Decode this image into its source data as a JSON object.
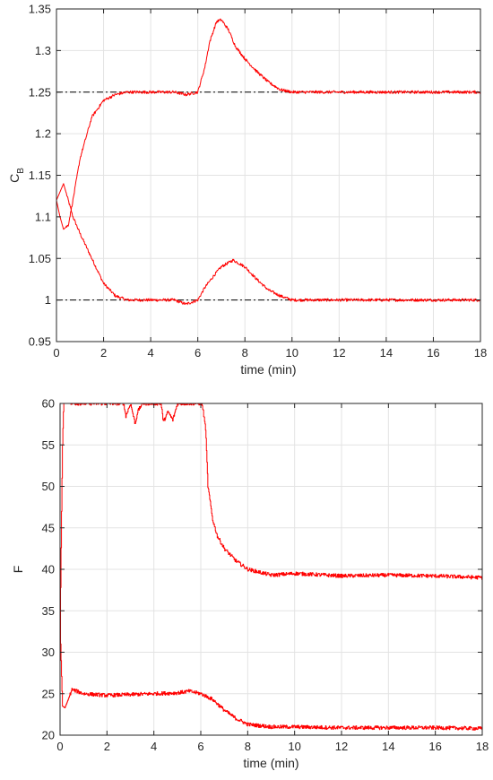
{
  "chart_data": [
    {
      "type": "line",
      "xlabel": "time (min)",
      "ylabel_main": "C",
      "ylabel_sub": "B",
      "xlim": [
        0,
        18
      ],
      "ylim": [
        0.95,
        1.35
      ],
      "xticks": [
        0,
        2,
        4,
        6,
        8,
        10,
        12,
        14,
        16,
        18
      ],
      "yticks": [
        0.95,
        1,
        1.05,
        1.1,
        1.15,
        1.2,
        1.25,
        1.3,
        1.35
      ],
      "ytick_labels": [
        "0.95",
        "1",
        "1.05",
        "1.1",
        "1.15",
        "1.2",
        "1.25",
        "1.3",
        "1.35"
      ],
      "grid": true,
      "setpoints": [
        1.0,
        1.25
      ],
      "series": [
        {
          "points": [
            [
              0,
              1.12
            ],
            [
              0.15,
              1.13
            ],
            [
              0.3,
              1.14
            ],
            [
              0.5,
              1.12
            ],
            [
              0.7,
              1.1
            ],
            [
              1.0,
              1.08
            ],
            [
              1.5,
              1.05
            ],
            [
              2.0,
              1.02
            ],
            [
              2.5,
              1.005
            ],
            [
              3.0,
              1.0
            ],
            [
              4.0,
              1.0
            ],
            [
              5.0,
              1.0
            ],
            [
              5.5,
              0.995
            ],
            [
              6.0,
              1.0
            ],
            [
              6.3,
              1.015
            ],
            [
              6.7,
              1.03
            ],
            [
              7.0,
              1.04
            ],
            [
              7.5,
              1.048
            ],
            [
              8.0,
              1.04
            ],
            [
              8.5,
              1.025
            ],
            [
              9.0,
              1.012
            ],
            [
              9.5,
              1.005
            ],
            [
              10.0,
              1.0
            ],
            [
              18.0,
              1.0
            ]
          ]
        },
        {
          "points": [
            [
              0,
              1.12
            ],
            [
              0.15,
              1.1
            ],
            [
              0.3,
              1.085
            ],
            [
              0.5,
              1.09
            ],
            [
              0.7,
              1.12
            ],
            [
              1.0,
              1.17
            ],
            [
              1.5,
              1.22
            ],
            [
              2.0,
              1.24
            ],
            [
              2.5,
              1.247
            ],
            [
              3.0,
              1.25
            ],
            [
              4.0,
              1.25
            ],
            [
              5.0,
              1.25
            ],
            [
              5.5,
              1.247
            ],
            [
              6.0,
              1.25
            ],
            [
              6.3,
              1.28
            ],
            [
              6.5,
              1.31
            ],
            [
              6.8,
              1.335
            ],
            [
              7.0,
              1.337
            ],
            [
              7.3,
              1.325
            ],
            [
              7.6,
              1.305
            ],
            [
              8.0,
              1.29
            ],
            [
              8.5,
              1.275
            ],
            [
              9.0,
              1.262
            ],
            [
              9.5,
              1.253
            ],
            [
              10.0,
              1.25
            ],
            [
              18.0,
              1.25
            ]
          ]
        }
      ]
    },
    {
      "type": "line",
      "xlabel": "time (min)",
      "ylabel_main": "F",
      "xlim": [
        0,
        18
      ],
      "ylim": [
        20,
        60
      ],
      "xticks": [
        0,
        2,
        4,
        6,
        8,
        10,
        12,
        14,
        16,
        18
      ],
      "yticks": [
        20,
        25,
        30,
        35,
        40,
        45,
        50,
        55,
        60
      ],
      "ytick_labels": [
        "20",
        "25",
        "30",
        "35",
        "40",
        "45",
        "50",
        "55",
        "60"
      ],
      "grid": true,
      "series": [
        {
          "points": [
            [
              0,
              33
            ],
            [
              0.05,
              45
            ],
            [
              0.1,
              55
            ],
            [
              0.15,
              60
            ],
            [
              2.7,
              60
            ],
            [
              2.8,
              58.5
            ],
            [
              3.0,
              60
            ],
            [
              3.2,
              57.5
            ],
            [
              3.3,
              59
            ],
            [
              3.5,
              60
            ],
            [
              4.3,
              60
            ],
            [
              4.4,
              57.8
            ],
            [
              4.6,
              59
            ],
            [
              4.8,
              58
            ],
            [
              5.0,
              60
            ],
            [
              6.05,
              60
            ],
            [
              6.2,
              57
            ],
            [
              6.3,
              50
            ],
            [
              6.5,
              46
            ],
            [
              6.7,
              44
            ],
            [
              7.0,
              42.5
            ],
            [
              7.5,
              41
            ],
            [
              8.0,
              40
            ],
            [
              9.0,
              39.3
            ],
            [
              10.0,
              39.5
            ],
            [
              12.0,
              39.2
            ],
            [
              14.0,
              39.3
            ],
            [
              16.0,
              39.2
            ],
            [
              18.0,
              39
            ]
          ]
        },
        {
          "points": [
            [
              0,
              33
            ],
            [
              0.05,
              28
            ],
            [
              0.1,
              23.5
            ],
            [
              0.2,
              23.3
            ],
            [
              0.3,
              24
            ],
            [
              0.5,
              25.5
            ],
            [
              1.0,
              25
            ],
            [
              2.0,
              24.8
            ],
            [
              3.0,
              24.9
            ],
            [
              4.0,
              25
            ],
            [
              5.0,
              25.1
            ],
            [
              5.5,
              25.3
            ],
            [
              6.0,
              25
            ],
            [
              6.5,
              24.3
            ],
            [
              7.0,
              23
            ],
            [
              7.5,
              22
            ],
            [
              8.0,
              21.3
            ],
            [
              9.0,
              21
            ],
            [
              10.0,
              21
            ],
            [
              12.0,
              20.9
            ],
            [
              14.0,
              20.9
            ],
            [
              16.0,
              20.9
            ],
            [
              18.0,
              20.8
            ]
          ]
        }
      ]
    }
  ],
  "colors": {
    "series": "#ff0000",
    "setpoint": "#000000",
    "grid": "#e3e3e3",
    "axis": "#262626"
  }
}
